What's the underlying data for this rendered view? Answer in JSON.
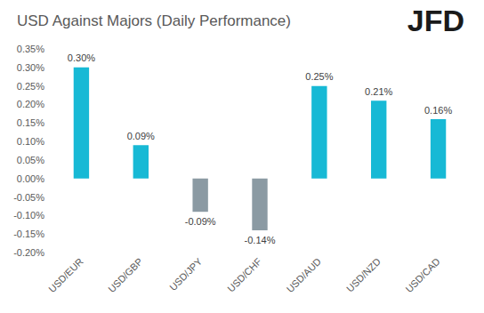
{
  "chart_data": {
    "type": "bar",
    "title": "USD Against Majors (Daily Performance)",
    "logo": "JFD",
    "categories": [
      "USD/EUR",
      "USD/GBP",
      "USD/JPY",
      "USD/CHF",
      "USD/AUD",
      "USD/NZD",
      "USD/CAD"
    ],
    "values": [
      0.3,
      0.09,
      -0.09,
      -0.14,
      0.25,
      0.21,
      0.16
    ],
    "value_labels": [
      "0.30%",
      "0.09%",
      "-0.09%",
      "-0.14%",
      "0.25%",
      "0.21%",
      "0.16%"
    ],
    "colors": [
      "#17b9d5",
      "#17b9d5",
      "#8b9aa3",
      "#8b9aa3",
      "#17b9d5",
      "#17b9d5",
      "#17b9d5"
    ],
    "ylim": [
      -0.2,
      0.35
    ],
    "yticks": [
      {
        "value": -0.2,
        "label": "-0.20%"
      },
      {
        "value": -0.15,
        "label": "-0.15%"
      },
      {
        "value": -0.1,
        "label": "-0.10%"
      },
      {
        "value": -0.05,
        "label": "-0.05%"
      },
      {
        "value": 0,
        "label": "0.00%"
      },
      {
        "value": 0.05,
        "label": "0.05%"
      },
      {
        "value": 0.1,
        "label": "0.10%"
      },
      {
        "value": 0.15,
        "label": "0.15%"
      },
      {
        "value": 0.2,
        "label": "0.20%"
      },
      {
        "value": 0.25,
        "label": "0.25%"
      },
      {
        "value": 0.3,
        "label": "0.30%"
      },
      {
        "value": 0.35,
        "label": "0.35%"
      }
    ],
    "grid": false,
    "data_labels": true
  }
}
